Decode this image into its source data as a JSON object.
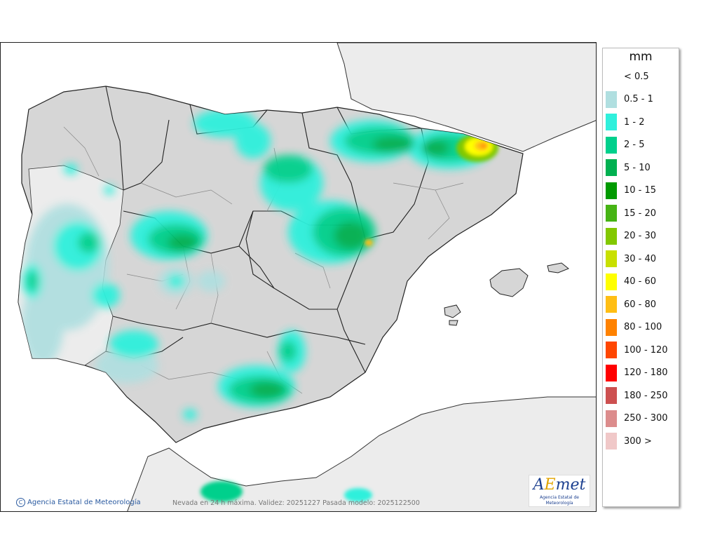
{
  "map": {
    "credit": "Agencia Estatal de Meteorología",
    "footer": "Nevada en 24 h máxima. Validez: 20251227 Pasada modelo: 2025122500",
    "logo_text": "AEmet",
    "logo_sub": "Agencia Estatal de Meteorología"
  },
  "legend": {
    "title": "mm",
    "items": [
      {
        "label": "< 0.5",
        "color": "#ffffff"
      },
      {
        "label": "0.5 - 1",
        "color": "#b0dfe0"
      },
      {
        "label": "1 - 2",
        "color": "#2ff0dc"
      },
      {
        "label": "2 - 5",
        "color": "#00d08c"
      },
      {
        "label": "5 - 10",
        "color": "#00b050"
      },
      {
        "label": "10 - 15",
        "color": "#009a00"
      },
      {
        "label": "15 - 20",
        "color": "#46b414"
      },
      {
        "label": "20 - 30",
        "color": "#82c800"
      },
      {
        "label": "30 - 40",
        "color": "#c8e000"
      },
      {
        "label": "40 - 60",
        "color": "#ffff00"
      },
      {
        "label": "60 - 80",
        "color": "#ffbe14"
      },
      {
        "label": "80 - 100",
        "color": "#ff8200"
      },
      {
        "label": "100 - 120",
        "color": "#ff4600"
      },
      {
        "label": "120 - 180",
        "color": "#ff0000"
      },
      {
        "label": "180 - 250",
        "color": "#cd5050"
      },
      {
        "label": "250 - 300",
        "color": "#dc8c8c"
      },
      {
        "label": "300 >",
        "color": "#f0c8c8"
      }
    ]
  }
}
